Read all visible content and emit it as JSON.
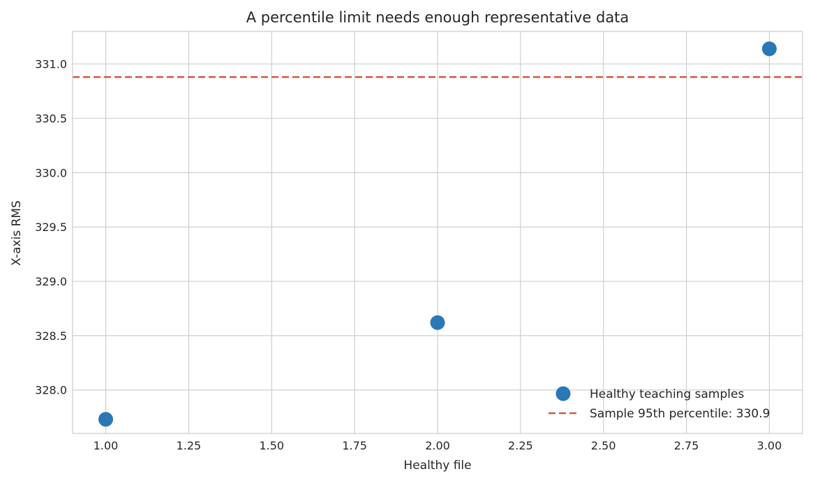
{
  "chart_data": {
    "type": "scatter",
    "title": "A percentile limit needs enough representative data",
    "xlabel": "Healthy file",
    "ylabel": "X-axis RMS",
    "xlim": [
      0.9,
      3.1
    ],
    "ylim": [
      327.6,
      331.3
    ],
    "x_ticks": [
      1.0,
      1.25,
      1.5,
      1.75,
      2.0,
      2.25,
      2.5,
      2.75,
      3.0
    ],
    "x_tick_labels": [
      "1.00",
      "1.25",
      "1.50",
      "1.75",
      "2.00",
      "2.25",
      "2.50",
      "2.75",
      "3.00"
    ],
    "y_ticks": [
      328.0,
      328.5,
      329.0,
      329.5,
      330.0,
      330.5,
      331.0
    ],
    "y_tick_labels": [
      "328.0",
      "328.5",
      "329.0",
      "329.5",
      "330.0",
      "330.5",
      "331.0"
    ],
    "grid": true,
    "legend_position": "lower-right",
    "series": [
      {
        "name": "Healthy teaching samples",
        "kind": "scatter",
        "color": "#2a78b5",
        "x": [
          1.0,
          2.0,
          3.0
        ],
        "y": [
          327.73,
          328.62,
          331.14
        ]
      }
    ],
    "reference_lines": [
      {
        "name": "Sample 95th percentile: 330.9",
        "orientation": "horizontal",
        "value": 330.88,
        "style": "dashed",
        "color": "#cf5a44"
      }
    ]
  }
}
